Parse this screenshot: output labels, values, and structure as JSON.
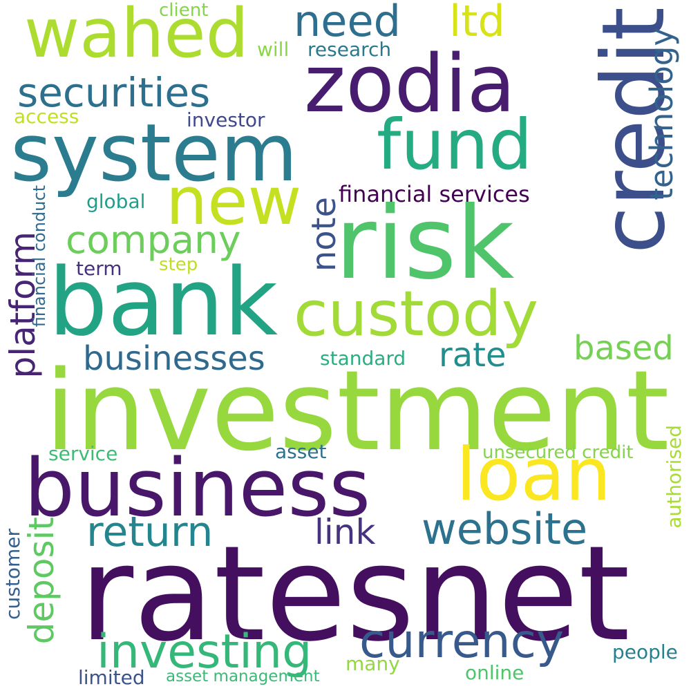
{
  "words": [
    {
      "text": "ratesnet",
      "color": "#440f5e"
    },
    {
      "text": "investment",
      "color": "#97d83f"
    },
    {
      "text": "bank",
      "color": "#22a384"
    },
    {
      "text": "risk",
      "color": "#4fc46a"
    },
    {
      "text": "business",
      "color": "#48176a"
    },
    {
      "text": "system",
      "color": "#2a7c8e"
    },
    {
      "text": "zodia",
      "color": "#481d6f"
    },
    {
      "text": "credit",
      "color": "#3c4f8a"
    },
    {
      "text": "loan",
      "color": "#fae722"
    },
    {
      "text": "custody",
      "color": "#a2da37"
    },
    {
      "text": "fund",
      "color": "#25ab82"
    },
    {
      "text": "wahed",
      "color": "#addc30"
    },
    {
      "text": "new",
      "color": "#c5e021"
    },
    {
      "text": "currency",
      "color": "#37598c"
    },
    {
      "text": "investing",
      "color": "#35b779"
    },
    {
      "text": "website",
      "color": "#2c718e"
    },
    {
      "text": "return",
      "color": "#25858e"
    },
    {
      "text": "securities",
      "color": "#2d708e"
    },
    {
      "text": "company",
      "color": "#6ccd5a"
    },
    {
      "text": "need",
      "color": "#2e6e8e"
    },
    {
      "text": "ltd",
      "color": "#d8e219"
    },
    {
      "text": "link",
      "color": "#46327e"
    },
    {
      "text": "businesses",
      "color": "#30698e"
    },
    {
      "text": "rate",
      "color": "#228d8d"
    },
    {
      "text": "based",
      "color": "#75d054"
    },
    {
      "text": "technology",
      "color": "#33628d"
    },
    {
      "text": "platform",
      "color": "#482475"
    },
    {
      "text": "note",
      "color": "#3b528b"
    },
    {
      "text": "deposit",
      "color": "#5ec962"
    },
    {
      "text": "financial services",
      "color": "#440154"
    },
    {
      "text": "investor",
      "color": "#3e4a89"
    },
    {
      "text": "access",
      "color": "#c2df23"
    },
    {
      "text": "client",
      "color": "#86d549"
    },
    {
      "text": "research",
      "color": "#2a788e"
    },
    {
      "text": "will",
      "color": "#8bd646"
    },
    {
      "text": "global",
      "color": "#1f9e89"
    },
    {
      "text": "step",
      "color": "#bddf26"
    },
    {
      "text": "term",
      "color": "#46307e"
    },
    {
      "text": "standard",
      "color": "#29af7f"
    },
    {
      "text": "service",
      "color": "#3dbc74"
    },
    {
      "text": "asset",
      "color": "#2d718e"
    },
    {
      "text": "unsecured credit",
      "color": "#84d44b"
    },
    {
      "text": "authorised",
      "color": "#a8db34"
    },
    {
      "text": "customer",
      "color": "#355f8d"
    },
    {
      "text": "people",
      "color": "#26818e"
    },
    {
      "text": "many",
      "color": "#93d741"
    },
    {
      "text": "online",
      "color": "#50c46a"
    },
    {
      "text": "limited",
      "color": "#3b528b"
    },
    {
      "text": "asset management",
      "color": "#3aba76"
    },
    {
      "text": "financial conduct",
      "color": "#2f6b8e"
    }
  ]
}
